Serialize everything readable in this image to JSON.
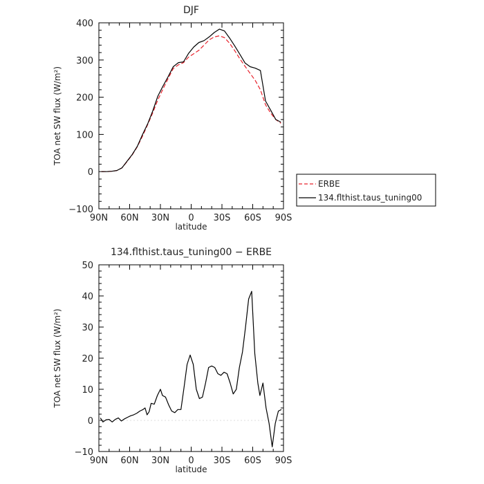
{
  "colors": {
    "model": "#000000",
    "obs": "#e8202a",
    "frame": "#000000"
  },
  "x_ticks": [
    {
      "value": -90,
      "label": "90N"
    },
    {
      "value": -60,
      "label": "60N"
    },
    {
      "value": -30,
      "label": "30N"
    },
    {
      "value": 0,
      "label": "0"
    },
    {
      "value": 30,
      "label": "30S"
    },
    {
      "value": 60,
      "label": "60S"
    },
    {
      "value": 90,
      "label": "90S"
    }
  ],
  "legend": {
    "items": [
      {
        "label": "ERBE",
        "color": "#e8202a",
        "dash": "dashed"
      },
      {
        "label": "134.flthist.taus_tuning00",
        "color": "#000000",
        "dash": "solid"
      }
    ]
  },
  "chart_data": [
    {
      "type": "line",
      "title": "DJF",
      "xlabel": "latitude",
      "ylabel": "TOA net SW flux (W/m²)",
      "xlim": [
        -90,
        90
      ],
      "ylim": [
        -100,
        400
      ],
      "y_ticks": [
        -100,
        0,
        100,
        200,
        300,
        400
      ],
      "y_tick_labels": [
        "−100",
        "0",
        "100",
        "200",
        "300",
        "400"
      ],
      "series": [
        {
          "name": "ERBE",
          "color": "#e8202a",
          "dash": "dashed",
          "x": [
            -87.5,
            -82.5,
            -77.5,
            -72.5,
            -67.5,
            -62.5,
            -57.5,
            -52.5,
            -47.5,
            -42.5,
            -37.5,
            -32.5,
            -27.5,
            -22.5,
            -17.5,
            -12.5,
            -7.5,
            -2.5,
            2.5,
            7.5,
            12.5,
            17.5,
            22.5,
            27.5,
            32.5,
            37.5,
            42.5,
            47.5,
            52.5,
            57.5,
            62.5,
            67.5,
            72.5,
            77.5,
            82.5,
            87.5
          ],
          "values": [
            0,
            0,
            1,
            3,
            10,
            27,
            45,
            67,
            95,
            126,
            158,
            193,
            222,
            250,
            277,
            287,
            293,
            308,
            317,
            326,
            340,
            354,
            362,
            365,
            360,
            345,
            325,
            303,
            283,
            264,
            245,
            220,
            180,
            157,
            140,
            130
          ]
        },
        {
          "name": "134.flthist.taus_tuning00",
          "color": "#000000",
          "dash": "solid",
          "x": [
            -87.5,
            -82.5,
            -77.5,
            -72.5,
            -67.5,
            -62.5,
            -57.5,
            -52.5,
            -47.5,
            -42.5,
            -37.5,
            -32.5,
            -27.5,
            -22.5,
            -17.5,
            -12.5,
            -7.5,
            -2.5,
            2.5,
            7.5,
            12.5,
            17.5,
            22.5,
            27.5,
            32.5,
            37.5,
            42.5,
            47.5,
            52.5,
            57.5,
            62.5,
            67.5,
            72.5,
            77.5,
            82.5,
            87.5
          ],
          "values": [
            0,
            0,
            1,
            3,
            10,
            28,
            46,
            68,
            99,
            128,
            163,
            203,
            230,
            255,
            282,
            293,
            295,
            318,
            335,
            347,
            352,
            362,
            374,
            383,
            378,
            359,
            338,
            315,
            292,
            282,
            278,
            272,
            190,
            165,
            140,
            133
          ]
        }
      ]
    },
    {
      "type": "line",
      "title": "134.flthist.taus_tuning00 − ERBE",
      "xlabel": "latitude",
      "ylabel": "TOA net SW flux (W/m²)",
      "xlim": [
        -90,
        90
      ],
      "ylim": [
        -10,
        50
      ],
      "y_ticks": [
        -10,
        0,
        10,
        20,
        30,
        40,
        50
      ],
      "y_tick_labels": [
        "−10",
        "0",
        "10",
        "20",
        "30",
        "40",
        "50"
      ],
      "series": [
        {
          "name": "",
          "color": "#000000",
          "dash": "solid",
          "x": [
            -88.5,
            -86,
            -83,
            -80,
            -77,
            -74,
            -71,
            -68,
            -65,
            -62,
            -59,
            -56,
            -53,
            -50,
            -47,
            -45,
            -43,
            -41,
            -39,
            -36,
            -33,
            -30,
            -28,
            -25,
            -22,
            -19,
            -16,
            -13,
            -10,
            -7,
            -4,
            -1,
            2,
            5,
            8,
            11,
            14,
            17,
            20,
            23,
            26,
            29,
            32,
            35,
            38,
            41,
            44,
            47,
            50,
            53,
            56,
            59,
            62,
            65,
            67,
            70,
            73,
            76,
            79,
            82,
            85,
            88
          ],
          "values": [
            0.8,
            -0.5,
            0.2,
            0.3,
            -0.5,
            0.3,
            0.8,
            -0.2,
            0.5,
            1.0,
            1.5,
            1.8,
            2.3,
            3.0,
            3.5,
            4.0,
            1.8,
            2.8,
            5.5,
            5.2,
            8.0,
            10.0,
            8.0,
            7.5,
            5.0,
            3.0,
            2.5,
            3.5,
            3.5,
            10.5,
            18.0,
            21.0,
            18.0,
            10.0,
            7.0,
            7.5,
            12.0,
            17.0,
            17.5,
            17.0,
            15.0,
            14.5,
            15.5,
            15.0,
            12.0,
            8.5,
            10.0,
            17.0,
            22.0,
            30.0,
            39.0,
            41.5,
            21.5,
            12.0,
            8.0,
            12.0,
            4.0,
            -1.0,
            -8.5,
            -1.0,
            3.0,
            3.5
          ]
        }
      ]
    }
  ]
}
